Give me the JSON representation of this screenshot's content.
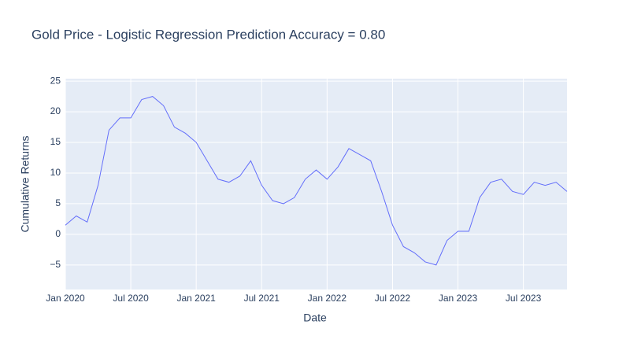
{
  "chart_data": {
    "type": "line",
    "title": "Gold Price - Logistic Regression Prediction Accuracy = 0.80",
    "x_label": "Date",
    "y_label": "Cumulative Returns",
    "x": [
      "2020-01",
      "2020-02",
      "2020-03",
      "2020-04",
      "2020-05",
      "2020-06",
      "2020-07",
      "2020-08",
      "2020-09",
      "2020-10",
      "2020-11",
      "2020-12",
      "2021-01",
      "2021-02",
      "2021-03",
      "2021-04",
      "2021-05",
      "2021-06",
      "2021-07",
      "2021-08",
      "2021-09",
      "2021-10",
      "2021-11",
      "2021-12",
      "2022-01",
      "2022-02",
      "2022-03",
      "2022-04",
      "2022-05",
      "2022-06",
      "2022-07",
      "2022-08",
      "2022-09",
      "2022-10",
      "2022-11",
      "2022-12",
      "2023-01",
      "2023-02",
      "2023-03",
      "2023-04",
      "2023-05",
      "2023-06",
      "2023-07",
      "2023-08",
      "2023-09",
      "2023-10",
      "2023-11"
    ],
    "values": [
      1.5,
      3,
      2,
      8,
      17,
      19,
      19,
      22,
      22.5,
      21,
      17.5,
      16.5,
      15,
      12,
      9,
      8.5,
      9.5,
      12,
      8,
      5.5,
      5,
      6,
      9,
      10.5,
      9,
      11,
      14,
      13,
      12,
      7,
      1.5,
      -2,
      -3,
      -4.5,
      -5,
      -1,
      0.5,
      0.5,
      6,
      8.5,
      9,
      7,
      6.5,
      8.5,
      8,
      8.5,
      7
    ],
    "color": "#636efa",
    "xlim": [
      "2020-01",
      "2023-11"
    ],
    "xticks": [
      {
        "value": "2020-01",
        "label": "Jan 2020"
      },
      {
        "value": "2020-07",
        "label": "Jul 2020"
      },
      {
        "value": "2021-01",
        "label": "Jan 2021"
      },
      {
        "value": "2021-07",
        "label": "Jul 2021"
      },
      {
        "value": "2022-01",
        "label": "Jan 2022"
      },
      {
        "value": "2022-07",
        "label": "Jul 2022"
      },
      {
        "value": "2023-01",
        "label": "Jan 2023"
      },
      {
        "value": "2023-07",
        "label": "Jul 2023"
      }
    ],
    "ylim": [
      -9,
      25.4
    ],
    "yticks": [
      {
        "value": -5,
        "label": "−5"
      },
      0,
      5,
      10,
      15,
      20,
      25
    ],
    "grid": true
  }
}
